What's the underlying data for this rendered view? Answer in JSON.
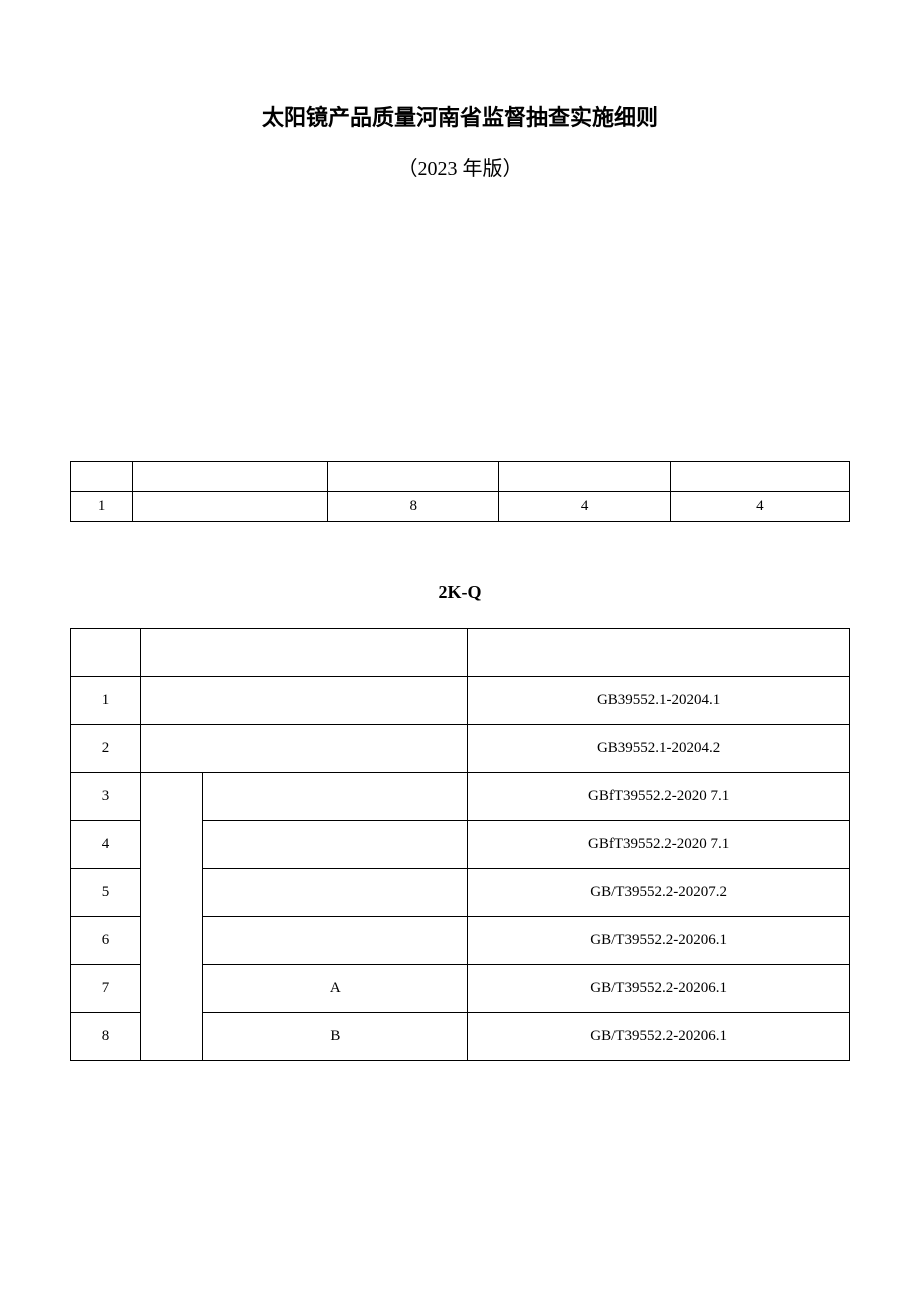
{
  "title": {
    "main": "太阳镜产品质量河南省监督抽查实施细则",
    "sub": "（2023 年版）"
  },
  "table1": {
    "header": [
      "",
      "",
      "",
      "",
      ""
    ],
    "row": [
      "1",
      "",
      "8",
      "4",
      "4"
    ]
  },
  "section_label": "2K-Q",
  "table2": {
    "header": [
      "",
      "",
      ""
    ],
    "rows": [
      {
        "num": "1",
        "cat": "",
        "item": "",
        "std": "GB39552.1-20204.1"
      },
      {
        "num": "2",
        "cat": "",
        "item": "",
        "std": "GB39552.1-20204.2"
      },
      {
        "num": "3",
        "cat": "",
        "item": "",
        "std": "GBfT39552.2-2020       7.1"
      },
      {
        "num": "4",
        "cat": "",
        "item": "",
        "std": "GBfT39552.2-2020       7.1"
      },
      {
        "num": "5",
        "cat": "",
        "item": "",
        "std": "GB/T39552.2-20207.2"
      },
      {
        "num": "6",
        "cat": "",
        "item": "",
        "std": "GB/T39552.2-20206.1"
      },
      {
        "num": "7",
        "cat": "",
        "item": "A",
        "std": "GB/T39552.2-20206.1"
      },
      {
        "num": "8",
        "cat": "",
        "item": "B",
        "std": "GB/T39552.2-20206.1"
      }
    ]
  },
  "colors": {
    "background": "#ffffff",
    "text": "#000000",
    "border": "#000000"
  },
  "typography": {
    "title_fontsize": 22,
    "subtitle_fontsize": 20,
    "body_fontsize": 15,
    "section_fontsize": 18
  }
}
